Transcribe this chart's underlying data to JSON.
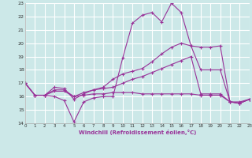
{
  "xlabel": "Windchill (Refroidissement éolien,°C)",
  "bg_color": "#cce8e8",
  "grid_color": "#ffffff",
  "line_color": "#993399",
  "xmin": 0,
  "xmax": 23,
  "ymin": 14,
  "ymax": 23,
  "lines": [
    [
      0,
      17,
      1,
      16.1,
      2,
      16.1,
      3,
      16.0,
      4,
      15.7,
      5,
      14.1,
      6,
      15.6,
      7,
      15.9,
      8,
      16.0,
      9,
      16.0,
      10,
      18.9,
      11,
      21.5,
      12,
      22.1,
      13,
      22.3,
      14,
      21.6,
      15,
      23.0,
      16,
      22.3,
      17,
      19.8,
      18,
      19.7,
      19,
      19.7,
      20,
      19.8,
      21,
      15.6,
      22,
      15.6,
      23,
      15.8
    ],
    [
      0,
      17,
      1,
      16.1,
      2,
      16.1,
      3,
      16.7,
      4,
      16.6,
      5,
      15.8,
      6,
      16.2,
      7,
      16.5,
      8,
      16.7,
      9,
      17.3,
      10,
      17.7,
      11,
      17.9,
      12,
      18.1,
      13,
      18.6,
      14,
      19.2,
      15,
      19.7,
      16,
      20.0,
      17,
      19.8,
      18,
      18.0,
      19,
      18.0,
      20,
      18.0,
      21,
      15.6,
      22,
      15.5,
      23,
      15.8
    ],
    [
      0,
      17,
      1,
      16.1,
      2,
      16.1,
      3,
      16.5,
      4,
      16.5,
      5,
      16.0,
      6,
      16.3,
      7,
      16.5,
      8,
      16.6,
      9,
      16.7,
      10,
      17.0,
      11,
      17.3,
      12,
      17.5,
      13,
      17.8,
      14,
      18.1,
      15,
      18.4,
      16,
      18.7,
      17,
      19.0,
      18,
      16.2,
      19,
      16.2,
      20,
      16.2,
      21,
      15.6,
      22,
      15.5,
      23,
      15.8
    ],
    [
      0,
      17,
      1,
      16.1,
      2,
      16.1,
      3,
      16.4,
      4,
      16.4,
      5,
      16.0,
      6,
      16.1,
      7,
      16.2,
      8,
      16.2,
      9,
      16.3,
      10,
      16.3,
      11,
      16.3,
      12,
      16.2,
      13,
      16.2,
      14,
      16.2,
      15,
      16.2,
      16,
      16.2,
      17,
      16.2,
      18,
      16.1,
      19,
      16.1,
      20,
      16.1,
      21,
      15.6,
      22,
      15.5,
      23,
      15.8
    ]
  ]
}
